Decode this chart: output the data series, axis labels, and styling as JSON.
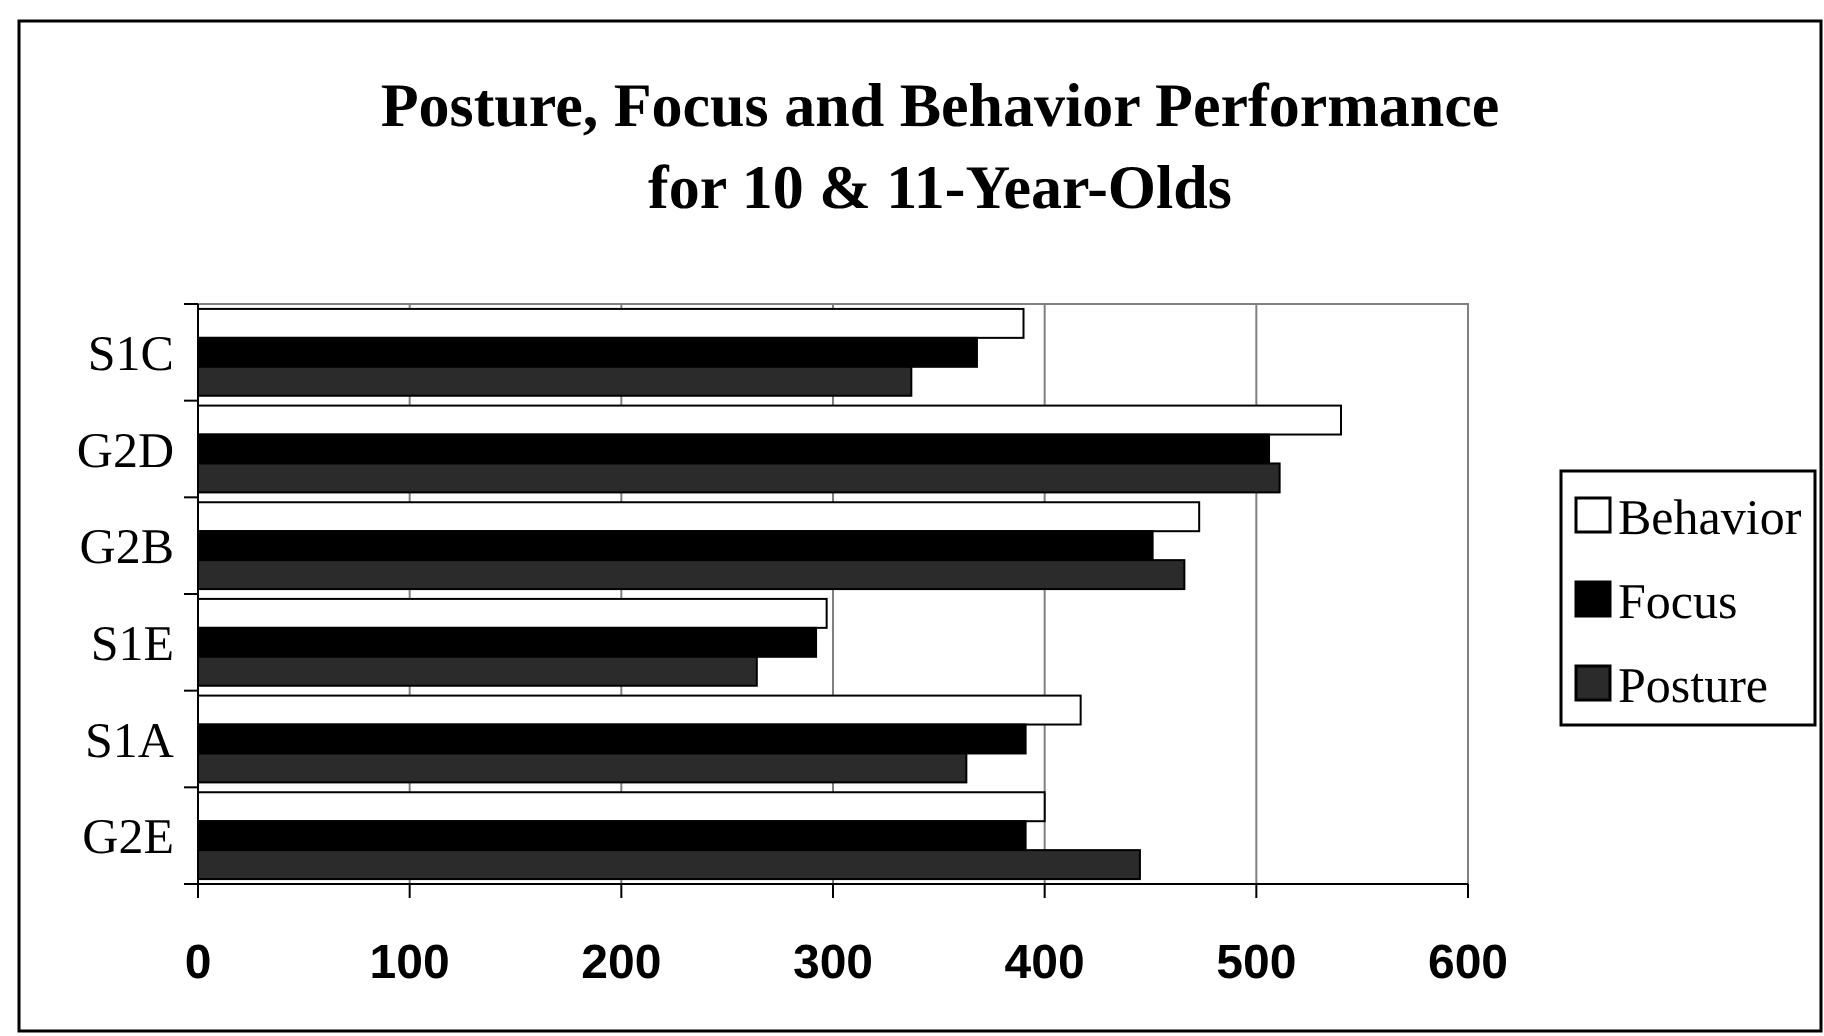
{
  "chart_data": {
    "type": "bar",
    "orientation": "horizontal",
    "title": "Posture, Focus and Behavior Performance\nfor 10 & 11-Year-Olds",
    "categories": [
      "S1C",
      "G2D",
      "G2B",
      "S1E",
      "S1A",
      "G2E"
    ],
    "series": [
      {
        "name": "Behavior",
        "color": "#ffffff",
        "values": [
          390,
          540,
          473,
          297,
          417,
          400
        ]
      },
      {
        "name": "Focus",
        "color": "#000000",
        "values": [
          368,
          506,
          451,
          292,
          391,
          391
        ]
      },
      {
        "name": "Posture",
        "color": "#2b2b2b",
        "values": [
          337,
          511,
          466,
          264,
          363,
          445
        ]
      }
    ],
    "xlim": [
      0,
      600
    ],
    "xticks": [
      0,
      100,
      200,
      300,
      400,
      500,
      600
    ],
    "grid": "x",
    "legend": "right"
  }
}
